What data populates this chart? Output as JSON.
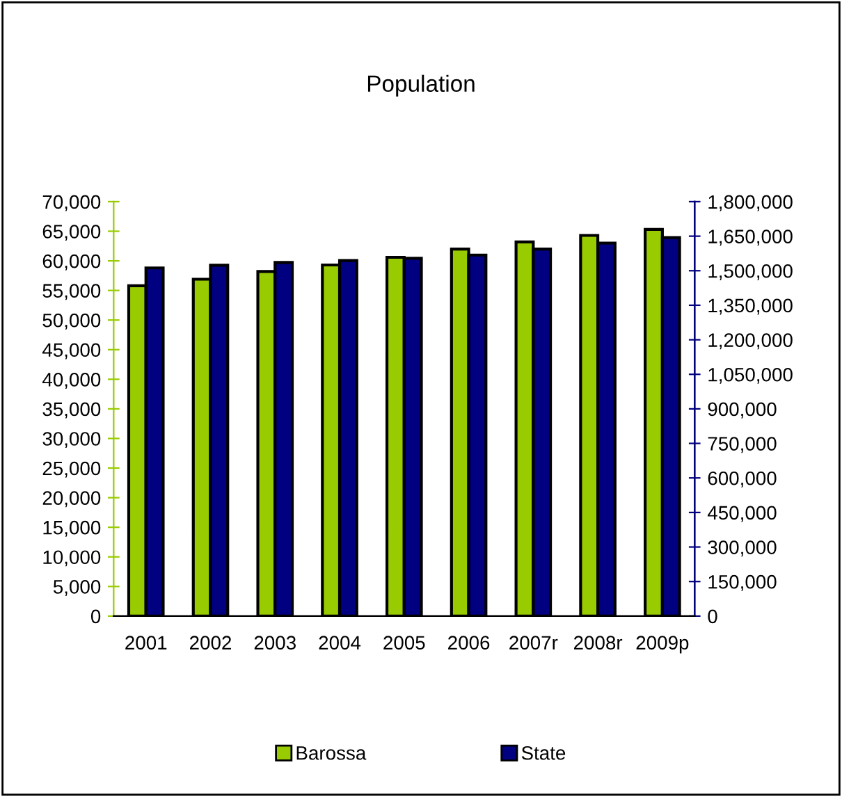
{
  "chart_data": {
    "type": "bar",
    "title": "Population",
    "categories": [
      "2001",
      "2002",
      "2003",
      "2004",
      "2005",
      "2006",
      "2007r",
      "2008r",
      "2009p"
    ],
    "series": [
      {
        "name": "Barossa",
        "color": "#99cc00",
        "values": [
          55800,
          56900,
          58200,
          59300,
          60600,
          62000,
          63200,
          64300,
          65300
        ]
      },
      {
        "name": "State",
        "color": "#000080",
        "axis": "y2",
        "values": [
          1512000,
          1524000,
          1536000,
          1544000,
          1554000,
          1568000,
          1594000,
          1620000,
          1644000
        ]
      }
    ],
    "ylim": [
      0,
      70000
    ],
    "yticks": [
      {
        "value": 0,
        "label": "0"
      },
      {
        "value": 5000,
        "label": "5,000"
      },
      {
        "value": 10000,
        "label": "10,000"
      },
      {
        "value": 15000,
        "label": "15,000"
      },
      {
        "value": 20000,
        "label": "20,000"
      },
      {
        "value": 25000,
        "label": "25,000"
      },
      {
        "value": 30000,
        "label": "30,000"
      },
      {
        "value": 35000,
        "label": "35,000"
      },
      {
        "value": 40000,
        "label": "40,000"
      },
      {
        "value": 45000,
        "label": "45,000"
      },
      {
        "value": 50000,
        "label": "50,000"
      },
      {
        "value": 55000,
        "label": "55,000"
      },
      {
        "value": 60000,
        "label": "60,000"
      },
      {
        "value": 65000,
        "label": "65,000"
      },
      {
        "value": 70000,
        "label": "70,000"
      }
    ],
    "y2lim": [
      0,
      1800000
    ],
    "y2ticks": [
      {
        "value": 0,
        "label": "0"
      },
      {
        "value": 150000,
        "label": "150,000"
      },
      {
        "value": 300000,
        "label": "300,000"
      },
      {
        "value": 450000,
        "label": "450,000"
      },
      {
        "value": 600000,
        "label": "600,000"
      },
      {
        "value": 750000,
        "label": "750,000"
      },
      {
        "value": 900000,
        "label": "900,000"
      },
      {
        "value": 1050000,
        "label": "1,050,000"
      },
      {
        "value": 1200000,
        "label": "1,200,000"
      },
      {
        "value": 1350000,
        "label": "1,350,000"
      },
      {
        "value": 1500000,
        "label": "1,500,000"
      },
      {
        "value": 1650000,
        "label": "1,650,000"
      },
      {
        "value": 1800000,
        "label": "1,800,000"
      }
    ],
    "grid": false,
    "legend": "bottom"
  }
}
